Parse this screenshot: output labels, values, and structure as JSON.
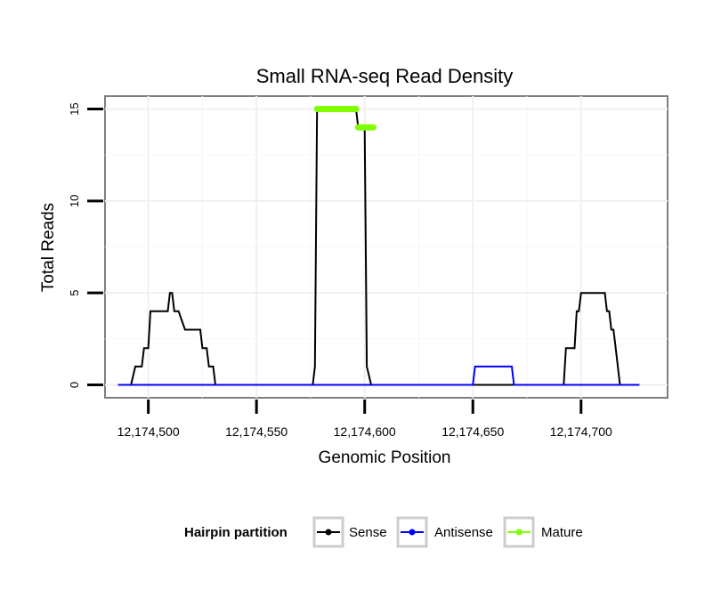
{
  "chart_data": {
    "type": "line",
    "title": "Small RNA-seq Read Density",
    "xlabel": "Genomic Position",
    "ylabel": "Total Reads",
    "xlim": [
      12174480,
      12174740
    ],
    "ylim": [
      -0.7,
      15.7
    ],
    "x_ticks": [
      12174500,
      12174550,
      12174600,
      12174650,
      12174700
    ],
    "x_tick_labels": [
      "12,174,500",
      "12,174,550",
      "12,174,600",
      "12,174,650",
      "12,174,700"
    ],
    "y_ticks": [
      0,
      5,
      10,
      15
    ],
    "y_tick_labels": [
      "0",
      "5",
      "10",
      "15"
    ],
    "grid": true,
    "legend": {
      "title": "Hairpin partition",
      "position": "bottom",
      "entries": [
        "Sense",
        "Antisense",
        "Mature"
      ]
    },
    "series": [
      {
        "name": "Sense",
        "color": "#000000",
        "x": [
          12174492,
          12174494,
          12174495,
          12174497,
          12174498,
          12174500,
          12174501,
          12174504,
          12174505,
          12174509,
          12174510,
          12174511,
          12174512,
          12174513,
          12174514,
          12174517,
          12174518,
          12174524,
          12174525,
          12174527,
          12174528,
          12174530,
          12174531,
          12174576,
          12174577,
          12174578,
          12174596,
          12174597,
          12174600,
          12174601,
          12174603,
          12174650,
          12174669,
          12174692,
          12174693,
          12174697,
          12174698,
          12174699,
          12174700,
          12174711,
          12174712,
          12174713,
          12174714,
          12174715,
          12174716,
          12174717,
          12174718
        ],
        "y": [
          0,
          1,
          1,
          1,
          2,
          2,
          4,
          4,
          4,
          4,
          5,
          5,
          4,
          4,
          4,
          3,
          3,
          3,
          2,
          2,
          1,
          1,
          0,
          0,
          1,
          15,
          15,
          14,
          14,
          1,
          0,
          0,
          0,
          0,
          2,
          2,
          4,
          4,
          5,
          5,
          4,
          4,
          3,
          3,
          2,
          1,
          0
        ]
      },
      {
        "name": "Antisense",
        "color": "#0000ff",
        "x": [
          12174486,
          12174650,
          12174651,
          12174668,
          12174669,
          12174727
        ],
        "y": [
          0,
          0,
          1,
          1,
          0,
          0
        ]
      },
      {
        "name": "Mature",
        "color": "#7fff00",
        "segments": [
          {
            "x": [
              12174578,
              12174596
            ],
            "y": [
              15,
              15
            ]
          },
          {
            "x": [
              12174597,
              12174604
            ],
            "y": [
              14,
              14
            ]
          }
        ]
      }
    ]
  }
}
